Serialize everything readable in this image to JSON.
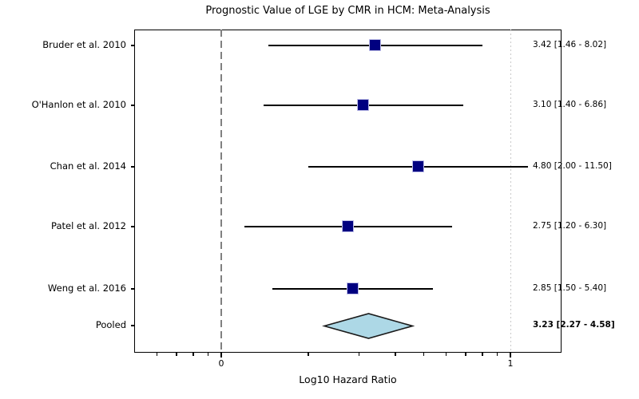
{
  "title": "Prognostic Value of LGE by CMR in HCM: Meta-Analysis",
  "x_axis_label": "Log10 Hazard Ratio",
  "colors": {
    "marker_fill": "#000080",
    "marker_edge": "#bdbde8",
    "ci_line": "#000000",
    "pooled_diamond_fill": "#add8e6",
    "pooled_diamond_edge": "#1a1a1a",
    "null_reference_line": "#808080",
    "decade_reference_line": "#c9c9c9",
    "background": "#ffffff",
    "text": "#000000"
  },
  "chart_data": {
    "type": "scatter",
    "variant": "forest-plot",
    "title": "Prognostic Value of LGE by CMR in HCM: Meta-Analysis",
    "xlabel": "Log10 Hazard Ratio",
    "x_axis": {
      "label": "Log10 Hazard Ratio",
      "scale": "linear in log10(HR), log-spaced minor ticks",
      "xlim_log10": [
        -0.301,
        1.177
      ],
      "major_ticks": [
        {
          "log10": 0,
          "label": "0"
        },
        {
          "log10": 1,
          "label": "1"
        }
      ],
      "minor_tick_hr_values": [
        0.6,
        0.7,
        0.8,
        0.9,
        2,
        3,
        4,
        5,
        6,
        7,
        8,
        9
      ],
      "reference_lines": [
        {
          "at_log10": 0,
          "style": "dashed",
          "color": "#808080",
          "name": "null-effect-line"
        },
        {
          "at_log10": 1,
          "style": "dotted",
          "color": "#c9c9c9",
          "name": "decade-line"
        }
      ]
    },
    "grid": false,
    "legend": "none",
    "studies": [
      {
        "label": "Bruder et al. 2010",
        "hr": 3.42,
        "ci_low": 1.46,
        "ci_high": 8.02,
        "annotation": "3.42 [1.46 - 8.02]",
        "pooled": false
      },
      {
        "label": "O'Hanlon et al. 2010",
        "hr": 3.1,
        "ci_low": 1.4,
        "ci_high": 6.86,
        "annotation": "3.10 [1.40 - 6.86]",
        "pooled": false
      },
      {
        "label": "Chan et al. 2014",
        "hr": 4.8,
        "ci_low": 2.0,
        "ci_high": 11.5,
        "annotation": "4.80 [2.00 - 11.50]",
        "pooled": false
      },
      {
        "label": "Patel et al. 2012",
        "hr": 2.75,
        "ci_low": 1.2,
        "ci_high": 6.3,
        "annotation": "2.75 [1.20 - 6.30]",
        "pooled": false
      },
      {
        "label": "Weng et al. 2016",
        "hr": 2.85,
        "ci_low": 1.5,
        "ci_high": 5.4,
        "annotation": "2.85 [1.50 - 5.40]",
        "pooled": false
      },
      {
        "label": "Pooled",
        "hr": 3.23,
        "ci_low": 2.27,
        "ci_high": 4.58,
        "annotation": "3.23 [2.27 - 4.58]",
        "pooled": true
      }
    ]
  }
}
